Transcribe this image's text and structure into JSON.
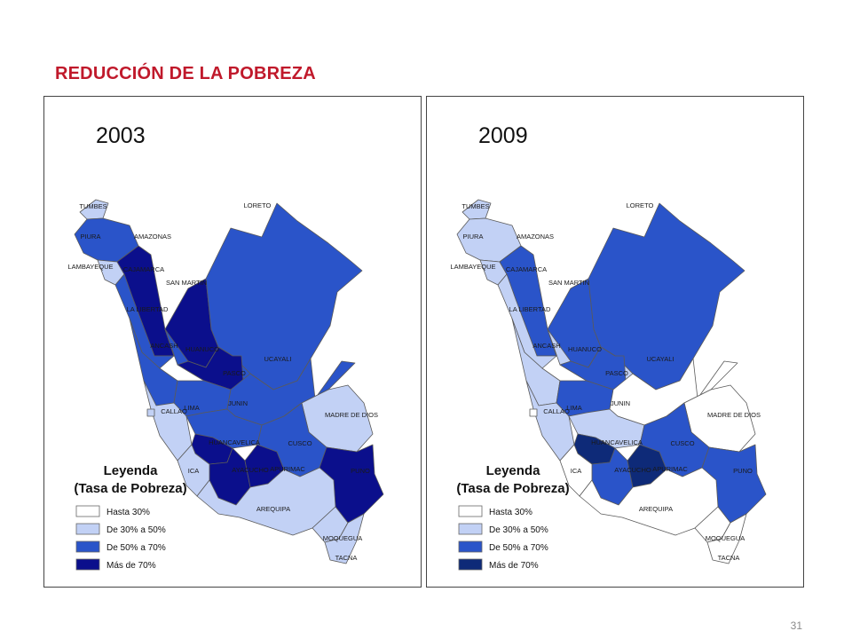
{
  "slide": {
    "title": "REDUCCIÓN DE LA POBREZA",
    "page_number": "31"
  },
  "legend": {
    "title_line1": "Leyenda",
    "title_line2": "(Tasa de Pobreza)",
    "categories": [
      {
        "key": "c1",
        "label": "Hasta 30%"
      },
      {
        "key": "c2",
        "label": "De 30% a 50%"
      },
      {
        "key": "c3",
        "label": "De 50% a 70%"
      },
      {
        "key": "c4",
        "label": "Más de 70%"
      }
    ]
  },
  "maps": [
    {
      "year": "2003",
      "colors": {
        "c1": "#ffffff",
        "c2": "#c2d1f5",
        "c3": "#2a54c9",
        "c4": "#0b0f8c"
      },
      "regions": {
        "TUMBES": "c2",
        "PIURA": "c3",
        "LAMBAYEQUE": "c2",
        "CAJAMARCA": "c4",
        "AMAZONAS": "c4",
        "LORETO": "c3",
        "SAN MARTIN": "c3",
        "LA LIBERTAD": "c3",
        "ANCASH": "c3",
        "HUANUCO": "c4",
        "PASCO": "c3",
        "UCAYALI": "c3",
        "LIMA": "c2",
        "CALLAO": "c2",
        "JUNIN": "c3",
        "MADRE DE DIOS": "c2",
        "HUANCAVELICA": "c4",
        "AYACUCHO": "c4",
        "APURIMAC": "c4",
        "CUSCO": "c3",
        "PUNO": "c4",
        "ICA": "c2",
        "AREQUIPA": "c2",
        "MOQUEGUA": "c2",
        "TACNA": "c2"
      }
    },
    {
      "year": "2009",
      "colors": {
        "c1": "#ffffff",
        "c2": "#c2d1f5",
        "c3": "#2a54c9",
        "c4": "#0e2a78"
      },
      "regions": {
        "TUMBES": "c2",
        "PIURA": "c2",
        "LAMBAYEQUE": "c2",
        "CAJAMARCA": "c3",
        "AMAZONAS": "c3",
        "LORETO": "c3",
        "SAN MARTIN": "c2",
        "LA LIBERTAD": "c2",
        "ANCASH": "c2",
        "HUANUCO": "c3",
        "PASCO": "c3",
        "UCAYALI": "c1",
        "LIMA": "c2",
        "CALLAO": "c1",
        "JUNIN": "c2",
        "MADRE DE DIOS": "c1",
        "HUANCAVELICA": "c4",
        "AYACUCHO": "c3",
        "APURIMAC": "c4",
        "CUSCO": "c3",
        "PUNO": "c3",
        "ICA": "c1",
        "AREQUIPA": "c1",
        "MOQUEGUA": "c1",
        "TACNA": "c1"
      }
    }
  ]
}
